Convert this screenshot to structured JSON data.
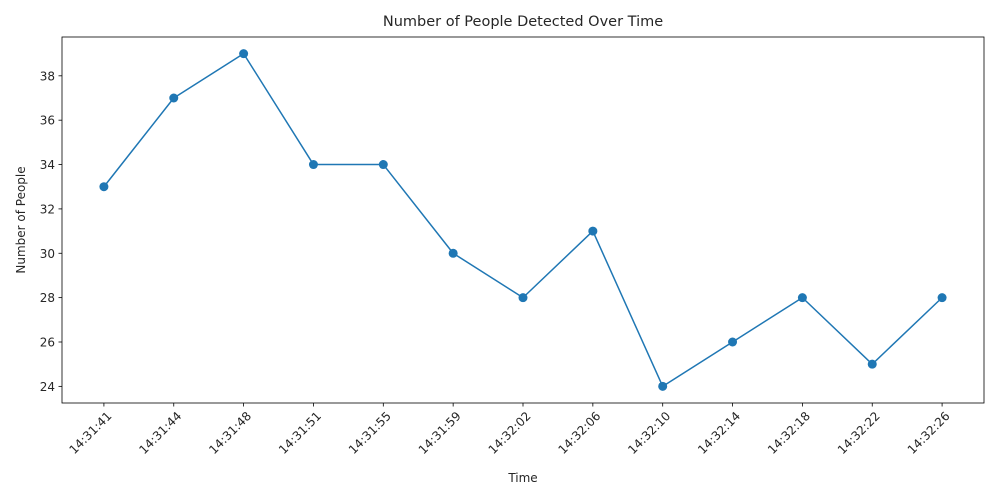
{
  "chart_data": {
    "type": "line",
    "title": "Number of People Detected Over Time",
    "xlabel": "Time",
    "ylabel": "Number of People",
    "categories": [
      "14:31:41",
      "14:31:44",
      "14:31:48",
      "14:31:51",
      "14:31:55",
      "14:31:59",
      "14:32:02",
      "14:32:06",
      "14:32:10",
      "14:32:14",
      "14:32:18",
      "14:32:22",
      "14:32:26"
    ],
    "series": [
      {
        "values": [
          33,
          37,
          39,
          34,
          34,
          30,
          28,
          31,
          24,
          26,
          28,
          25,
          28
        ],
        "color": "#1f77b4",
        "marker": "circle"
      }
    ],
    "ylim": [
      23.25,
      39.75
    ],
    "yticks": [
      24,
      26,
      28,
      30,
      32,
      34,
      36,
      38
    ],
    "grid": false,
    "x_tick_rotation_deg": 45
  }
}
